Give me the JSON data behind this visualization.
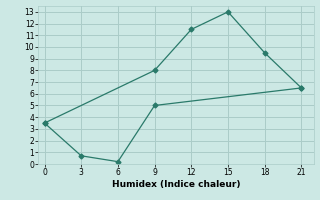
{
  "xlabel": "Humidex (Indice chaleur)",
  "bg_color": "#cce8e4",
  "grid_color": "#aaccc8",
  "line_color": "#2a7a6a",
  "line1_x": [
    0,
    9,
    12,
    15,
    18,
    21
  ],
  "line1_y": [
    3.5,
    8.0,
    11.5,
    13.0,
    9.5,
    6.5
  ],
  "line2_x": [
    0,
    3,
    6,
    9,
    21
  ],
  "line2_y": [
    3.5,
    0.7,
    0.2,
    5.0,
    6.5
  ],
  "xlim": [
    -0.5,
    22
  ],
  "ylim": [
    0,
    13.5
  ],
  "xticks": [
    0,
    3,
    6,
    9,
    12,
    15,
    18,
    21
  ],
  "yticks": [
    0,
    1,
    2,
    3,
    4,
    5,
    6,
    7,
    8,
    9,
    10,
    11,
    12,
    13
  ],
  "markersize": 2.5,
  "linewidth": 0.9,
  "tick_fontsize": 5.5,
  "label_fontsize": 6.5
}
